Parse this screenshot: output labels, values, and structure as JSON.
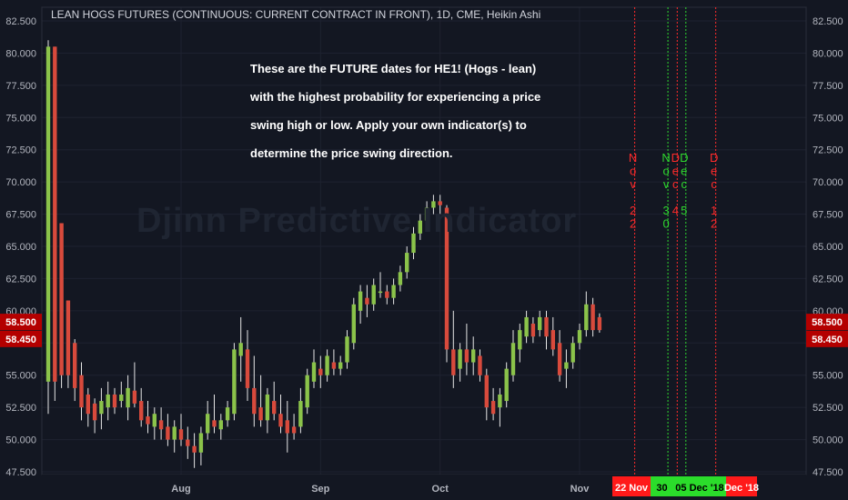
{
  "header": {
    "title": "LEAN HOGS FUTURES (CONTINUOUS: CURRENT CONTRACT IN FRONT), 1D, CME, Heikin Ashi"
  },
  "annotation": {
    "lines": [
      "These are the FUTURE dates for HE1! (Hogs - lean)",
      "with the highest probability for experiencing a price",
      "swing high or low. Apply your own indicator(s) to",
      "determine the price swing direction."
    ]
  },
  "watermark": "Djinn Predictive Indicator",
  "colors": {
    "background": "#131722",
    "bull": "#8bc34a",
    "bear": "#d84a3c",
    "red_marker": "#ff2b2b",
    "green_marker": "#2fd62f",
    "price_badge": "#b40000",
    "axis_text": "#b2b5be"
  },
  "chart_data": {
    "type": "candlestick",
    "style": "Heikin Ashi",
    "interval": "1D",
    "exchange": "CME",
    "title": "LEAN HOGS FUTURES (CONTINUOUS: CURRENT CONTRACT IN FRONT), 1D, CME, Heikin Ashi",
    "ylim": [
      47.5,
      82.5
    ],
    "yticks": [
      "47.500",
      "50.000",
      "52.500",
      "55.000",
      "57.500",
      "60.000",
      "62.500",
      "65.000",
      "67.500",
      "70.000",
      "72.500",
      "75.000",
      "77.500",
      "80.000",
      "82.500"
    ],
    "xticks": [
      {
        "label": "Aug",
        "index": 20
      },
      {
        "label": "Sep",
        "index": 41
      },
      {
        "label": "Oct",
        "index": 59
      },
      {
        "label": "Nov",
        "index": 80
      }
    ],
    "price_labels": [
      "58.500",
      "58.450"
    ],
    "price_label_values": [
      58.5,
      58.45
    ],
    "grid": true,
    "candles": [
      {
        "o": 54.5,
        "h": 81.0,
        "l": 52.0,
        "c": 80.5
      },
      {
        "o": 80.5,
        "h": 80.5,
        "l": 53.0,
        "c": 54.5
      },
      {
        "o": 66.8,
        "h": 66.8,
        "l": 54.0,
        "c": 55.0
      },
      {
        "o": 60.8,
        "h": 60.8,
        "l": 54.0,
        "c": 55.0
      },
      {
        "o": 57.5,
        "h": 57.8,
        "l": 53.0,
        "c": 54.0
      },
      {
        "o": 55.0,
        "h": 56.0,
        "l": 51.5,
        "c": 52.5
      },
      {
        "o": 53.5,
        "h": 54.0,
        "l": 51.0,
        "c": 52.0
      },
      {
        "o": 52.8,
        "h": 53.2,
        "l": 50.5,
        "c": 51.5
      },
      {
        "o": 52.0,
        "h": 54.0,
        "l": 50.8,
        "c": 53.0
      },
      {
        "o": 52.5,
        "h": 54.5,
        "l": 51.5,
        "c": 53.5
      },
      {
        "o": 53.5,
        "h": 54.0,
        "l": 52.0,
        "c": 52.5
      },
      {
        "o": 53.0,
        "h": 54.5,
        "l": 52.5,
        "c": 53.5
      },
      {
        "o": 52.5,
        "h": 55.0,
        "l": 51.5,
        "c": 54.0
      },
      {
        "o": 53.8,
        "h": 56.0,
        "l": 52.5,
        "c": 52.8
      },
      {
        "o": 53.0,
        "h": 54.0,
        "l": 51.0,
        "c": 51.5
      },
      {
        "o": 51.8,
        "h": 53.0,
        "l": 50.5,
        "c": 51.2
      },
      {
        "o": 51.0,
        "h": 52.5,
        "l": 50.0,
        "c": 52.0
      },
      {
        "o": 51.5,
        "h": 52.5,
        "l": 50.0,
        "c": 50.8
      },
      {
        "o": 51.0,
        "h": 52.0,
        "l": 49.5,
        "c": 50.0
      },
      {
        "o": 50.0,
        "h": 51.5,
        "l": 49.0,
        "c": 51.0
      },
      {
        "o": 50.8,
        "h": 52.0,
        "l": 49.5,
        "c": 50.0
      },
      {
        "o": 50.0,
        "h": 51.0,
        "l": 48.5,
        "c": 49.5
      },
      {
        "o": 49.5,
        "h": 50.5,
        "l": 47.8,
        "c": 49.0
      },
      {
        "o": 49.0,
        "h": 51.0,
        "l": 48.0,
        "c": 50.5
      },
      {
        "o": 50.5,
        "h": 53.0,
        "l": 50.0,
        "c": 52.0
      },
      {
        "o": 51.5,
        "h": 53.5,
        "l": 50.5,
        "c": 51.0
      },
      {
        "o": 50.8,
        "h": 52.0,
        "l": 50.0,
        "c": 51.5
      },
      {
        "o": 51.5,
        "h": 53.0,
        "l": 51.0,
        "c": 52.5
      },
      {
        "o": 52.0,
        "h": 57.5,
        "l": 51.5,
        "c": 57.0
      },
      {
        "o": 56.5,
        "h": 59.5,
        "l": 54.5,
        "c": 57.5
      },
      {
        "o": 57.0,
        "h": 58.5,
        "l": 53.0,
        "c": 54.0
      },
      {
        "o": 54.0,
        "h": 56.5,
        "l": 51.0,
        "c": 52.0
      },
      {
        "o": 52.5,
        "h": 55.0,
        "l": 51.0,
        "c": 51.5
      },
      {
        "o": 51.5,
        "h": 54.0,
        "l": 50.5,
        "c": 53.5
      },
      {
        "o": 53.0,
        "h": 54.5,
        "l": 51.5,
        "c": 52.0
      },
      {
        "o": 52.0,
        "h": 53.5,
        "l": 50.5,
        "c": 51.0
      },
      {
        "o": 51.5,
        "h": 53.0,
        "l": 49.0,
        "c": 50.5
      },
      {
        "o": 51.0,
        "h": 52.0,
        "l": 50.0,
        "c": 50.5
      },
      {
        "o": 51.0,
        "h": 54.0,
        "l": 50.5,
        "c": 53.0
      },
      {
        "o": 52.5,
        "h": 55.5,
        "l": 52.0,
        "c": 55.0
      },
      {
        "o": 54.5,
        "h": 57.0,
        "l": 54.0,
        "c": 56.0
      },
      {
        "o": 55.5,
        "h": 56.5,
        "l": 54.0,
        "c": 55.0
      },
      {
        "o": 55.0,
        "h": 57.0,
        "l": 54.5,
        "c": 56.5
      },
      {
        "o": 56.0,
        "h": 57.0,
        "l": 55.0,
        "c": 55.5
      },
      {
        "o": 55.5,
        "h": 56.5,
        "l": 55.0,
        "c": 56.0
      },
      {
        "o": 56.0,
        "h": 58.5,
        "l": 55.5,
        "c": 58.0
      },
      {
        "o": 57.5,
        "h": 61.0,
        "l": 57.0,
        "c": 60.5
      },
      {
        "o": 60.0,
        "h": 62.0,
        "l": 59.0,
        "c": 61.5
      },
      {
        "o": 61.0,
        "h": 62.0,
        "l": 59.5,
        "c": 60.5
      },
      {
        "o": 60.5,
        "h": 62.5,
        "l": 60.0,
        "c": 62.0
      },
      {
        "o": 61.5,
        "h": 63.0,
        "l": 61.0,
        "c": 61.5
      },
      {
        "o": 61.5,
        "h": 62.0,
        "l": 60.5,
        "c": 61.0
      },
      {
        "o": 61.0,
        "h": 62.5,
        "l": 60.5,
        "c": 62.0
      },
      {
        "o": 62.0,
        "h": 63.5,
        "l": 61.5,
        "c": 63.0
      },
      {
        "o": 63.0,
        "h": 65.0,
        "l": 62.5,
        "c": 64.5
      },
      {
        "o": 64.5,
        "h": 66.5,
        "l": 64.0,
        "c": 66.0
      },
      {
        "o": 66.0,
        "h": 67.5,
        "l": 65.5,
        "c": 67.0
      },
      {
        "o": 67.0,
        "h": 68.5,
        "l": 66.5,
        "c": 68.0
      },
      {
        "o": 68.0,
        "h": 69.0,
        "l": 67.5,
        "c": 68.5
      },
      {
        "o": 68.5,
        "h": 69.0,
        "l": 67.5,
        "c": 68.2
      },
      {
        "o": 68.0,
        "h": 68.2,
        "l": 56.0,
        "c": 57.0
      },
      {
        "o": 57.0,
        "h": 60.0,
        "l": 54.0,
        "c": 55.0
      },
      {
        "o": 55.5,
        "h": 57.5,
        "l": 54.5,
        "c": 57.0
      },
      {
        "o": 57.0,
        "h": 59.0,
        "l": 55.0,
        "c": 56.0
      },
      {
        "o": 56.0,
        "h": 58.0,
        "l": 55.0,
        "c": 57.0
      },
      {
        "o": 56.5,
        "h": 57.0,
        "l": 54.5,
        "c": 55.0
      },
      {
        "o": 55.0,
        "h": 55.5,
        "l": 51.5,
        "c": 52.5
      },
      {
        "o": 53.0,
        "h": 54.0,
        "l": 51.5,
        "c": 52.0
      },
      {
        "o": 52.5,
        "h": 54.0,
        "l": 51.0,
        "c": 53.5
      },
      {
        "o": 53.0,
        "h": 56.0,
        "l": 52.5,
        "c": 55.5
      },
      {
        "o": 55.0,
        "h": 58.5,
        "l": 54.5,
        "c": 57.5
      },
      {
        "o": 57.0,
        "h": 59.0,
        "l": 56.0,
        "c": 58.5
      },
      {
        "o": 58.0,
        "h": 60.0,
        "l": 57.5,
        "c": 59.5
      },
      {
        "o": 59.0,
        "h": 59.5,
        "l": 57.5,
        "c": 58.0
      },
      {
        "o": 58.5,
        "h": 60.0,
        "l": 58.0,
        "c": 59.5
      },
      {
        "o": 59.5,
        "h": 60.0,
        "l": 57.0,
        "c": 58.0
      },
      {
        "o": 58.5,
        "h": 59.5,
        "l": 56.5,
        "c": 57.0
      },
      {
        "o": 57.5,
        "h": 58.5,
        "l": 54.5,
        "c": 55.0
      },
      {
        "o": 55.5,
        "h": 57.0,
        "l": 54.0,
        "c": 56.0
      },
      {
        "o": 56.0,
        "h": 58.0,
        "l": 55.5,
        "c": 57.5
      },
      {
        "o": 57.5,
        "h": 59.0,
        "l": 57.0,
        "c": 58.5
      },
      {
        "o": 58.5,
        "h": 61.5,
        "l": 58.0,
        "c": 60.5
      },
      {
        "o": 60.5,
        "h": 61.0,
        "l": 58.0,
        "c": 58.5
      },
      {
        "o": 59.5,
        "h": 59.8,
        "l": 58.3,
        "c": 58.5
      }
    ],
    "markers": [
      {
        "label": "22 Nov",
        "color": "red",
        "vertical_text": [
          "N",
          "o",
          "v",
          "",
          "2",
          "2"
        ],
        "index": 88.3
      },
      {
        "label": "30",
        "color": "green",
        "vertical_text": [
          "N",
          "o",
          "v",
          "",
          "3",
          "0"
        ],
        "index": 93.3
      },
      {
        "label": "",
        "color": "red",
        "vertical_text": [
          "D",
          "e",
          "c",
          "",
          "4"
        ],
        "index": 94.7
      },
      {
        "label": "05 Dec '18",
        "color": "green",
        "vertical_text": [
          "D",
          "e",
          "c",
          "",
          "5"
        ],
        "index": 96.0
      },
      {
        "label": "Dec '18",
        "color": "red",
        "vertical_text": [
          "D",
          "e",
          "c",
          "",
          "1",
          "2"
        ],
        "index": 100.5
      }
    ]
  }
}
